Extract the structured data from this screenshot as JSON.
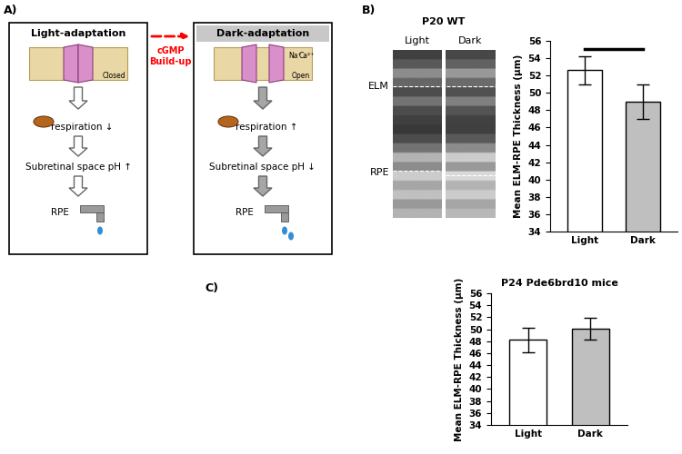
{
  "diagram": {
    "panel_label": "A)",
    "arrow_label": "cGMP\nBuild-up",
    "boxes": [
      {
        "title": "Light-adaptation",
        "channel_state": "Closed",
        "steps": [
          "respiration ↓",
          "Subretinal space pH ↑",
          "RPE"
        ]
      },
      {
        "title": "Dark-adaptation",
        "channel_state": "Open",
        "channel_labels": [
          "Na⁺",
          "Ca²⁺"
        ],
        "steps": [
          "respiration ↑",
          "Subretinal space pH ↓",
          "RPE"
        ]
      }
    ]
  },
  "image": {
    "panel_label": "B)",
    "title": "P20 WT",
    "columns": [
      "Light",
      "Dark"
    ],
    "layers": [
      "ELM",
      "RPE"
    ]
  },
  "chart_data": [
    {
      "type": "bar",
      "categories": [
        "Light",
        "Dark"
      ],
      "values": [
        52.6,
        49.0
      ],
      "errors": [
        1.6,
        2.0
      ],
      "colors": [
        "#ffffff",
        "#bfbfbf"
      ],
      "ylabel": "Mean ELM-RPE Thickness (µm)",
      "ylim": [
        34,
        56
      ],
      "yticks": [
        34,
        36,
        38,
        40,
        42,
        44,
        46,
        48,
        50,
        52,
        54,
        56
      ],
      "significant_pair": [
        "Light",
        "Dark"
      ]
    },
    {
      "type": "bar",
      "panel_label": "C)",
      "title": "P24 Pde6brd10 mice",
      "categories": [
        "Light",
        "Dark"
      ],
      "values": [
        48.2,
        50.1
      ],
      "errors": [
        2.0,
        1.8
      ],
      "colors": [
        "#ffffff",
        "#bfbfbf"
      ],
      "ylabel": "Mean ELM-RPE Thickness (µm)",
      "ylim": [
        34,
        56
      ],
      "yticks": [
        34,
        36,
        38,
        40,
        42,
        44,
        46,
        48,
        50,
        52,
        54,
        56
      ]
    }
  ]
}
